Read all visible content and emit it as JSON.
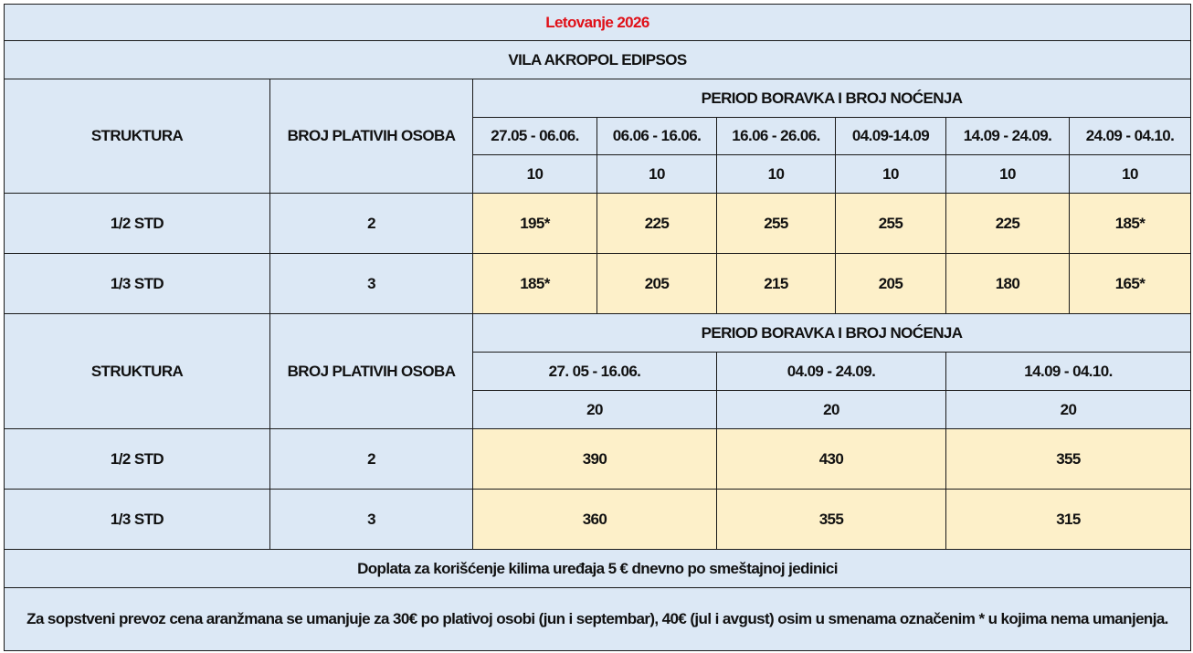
{
  "title": "Letovanje 2026",
  "hotel": "VILA AKROPOL EDIPSOS",
  "section1": {
    "col_structure": "STRUKTURA",
    "col_persons": "BROJ PLATIVIH OSOBA",
    "period_header": "PERIOD BORAVKA I BROJ NOĆENJA",
    "periods": [
      "27.05 - 06.06.",
      "06.06 - 16.06.",
      "16.06 - 26.06.",
      "04.09-14.09",
      "14.09 - 24.09.",
      "24.09 - 04.10."
    ],
    "nights": [
      "10",
      "10",
      "10",
      "10",
      "10",
      "10"
    ],
    "rows": [
      {
        "structure": "1/2 STD",
        "persons": "2",
        "prices": [
          "195*",
          "225",
          "255",
          "255",
          "225",
          "185*"
        ]
      },
      {
        "structure": "1/3 STD",
        "persons": "3",
        "prices": [
          "185*",
          "205",
          "215",
          "205",
          "180",
          "165*"
        ]
      }
    ]
  },
  "section2": {
    "col_structure": "STRUKTURA",
    "col_persons": "BROJ PLATIVIH OSOBA",
    "period_header": "PERIOD BORAVKA I BROJ NOĆENJA",
    "periods": [
      "27. 05 - 16.06.",
      "04.09 - 24.09.",
      "14.09 - 04.10."
    ],
    "nights": [
      "20",
      "20",
      "20"
    ],
    "rows": [
      {
        "structure": "1/2 STD",
        "persons": "2",
        "prices": [
          "390",
          "430",
          "355"
        ]
      },
      {
        "structure": "1/3 STD",
        "persons": "3",
        "prices": [
          "360",
          "355",
          "315"
        ]
      }
    ]
  },
  "notes": [
    "Doplata za korišćenje kilima uređaja 5 € dnevno po smeštajnoj jedinici",
    "Za sopstveni prevoz cena aranžmana se umanjuje za 30€ po plativoj osobi (jun i septembar), 40€ (jul i avgust) osim u smenama označenim * u kojima nema umanjenja."
  ],
  "colors": {
    "header_bg": "#dce8f5",
    "price_bg": "#fdf0c9",
    "title": "#e01018"
  }
}
